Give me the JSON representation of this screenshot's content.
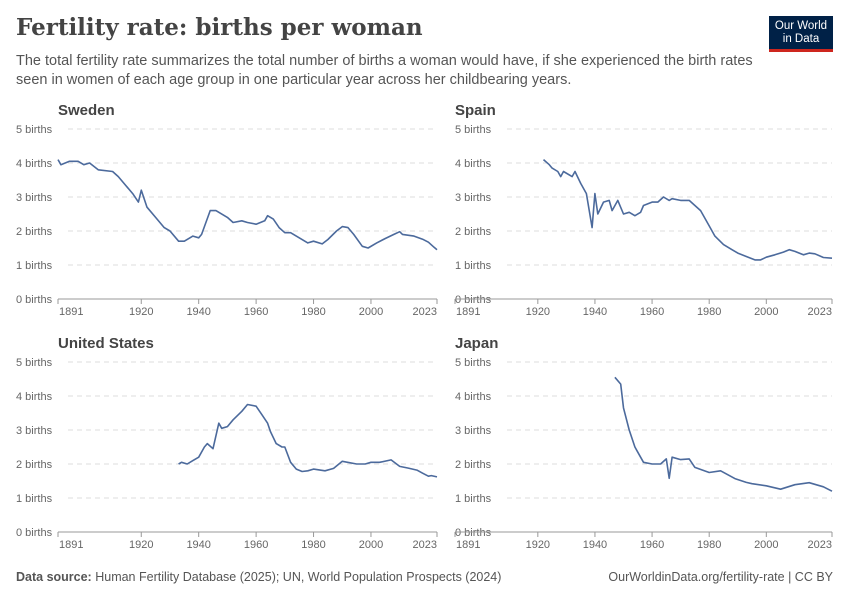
{
  "title": "Fertility rate: births per woman",
  "subtitle": "The total fertility rate summarizes the total number of births a woman would have, if she experienced the birth rates seen in women of each age group in one particular year across her childbearing years.",
  "logo": "Our World in Data",
  "footer": {
    "source_label": "Data source:",
    "source": "Human Fertility Database (2025); UN, World Population Prospects (2024)",
    "url": "OurWorldinData.org/fertility-rate | CC BY"
  },
  "colors": {
    "line": "#4c6a9c",
    "grid": "#dddddd"
  },
  "chart_data": [
    {
      "type": "line",
      "title": "Sweden",
      "xlim": [
        1891,
        2023
      ],
      "ylim": [
        0,
        5
      ],
      "xticks": [
        "1891",
        "1920",
        "1940",
        "1960",
        "1980",
        "2000",
        "2023"
      ],
      "yticks": [
        "0 births",
        "1 births",
        "2 births",
        "3 births",
        "4 births",
        "5 births"
      ],
      "x": [
        1891,
        1892,
        1895,
        1898,
        1900,
        1902,
        1905,
        1910,
        1912,
        1914,
        1917,
        1919,
        1920,
        1922,
        1925,
        1928,
        1930,
        1933,
        1935,
        1938,
        1940,
        1941,
        1944,
        1946,
        1950,
        1952,
        1955,
        1957,
        1960,
        1963,
        1964,
        1966,
        1968,
        1970,
        1972,
        1975,
        1978,
        1980,
        1983,
        1985,
        1988,
        1990,
        1992,
        1994,
        1997,
        1999,
        2002,
        2005,
        2008,
        2010,
        2011,
        2015,
        2018,
        2020,
        2022,
        2023
      ],
      "y": [
        4.1,
        3.95,
        4.05,
        4.05,
        3.95,
        4.0,
        3.8,
        3.75,
        3.6,
        3.4,
        3.1,
        2.85,
        3.2,
        2.7,
        2.4,
        2.1,
        2.0,
        1.7,
        1.7,
        1.85,
        1.8,
        1.9,
        2.6,
        2.6,
        2.4,
        2.25,
        2.3,
        2.25,
        2.2,
        2.3,
        2.45,
        2.35,
        2.1,
        1.95,
        1.95,
        1.8,
        1.65,
        1.7,
        1.62,
        1.75,
        2.0,
        2.13,
        2.1,
        1.9,
        1.55,
        1.5,
        1.65,
        1.78,
        1.9,
        1.98,
        1.9,
        1.85,
        1.76,
        1.67,
        1.52,
        1.45
      ]
    },
    {
      "type": "line",
      "title": "Spain",
      "xlim": [
        1891,
        2023
      ],
      "ylim": [
        0,
        5
      ],
      "xticks": [
        "1891",
        "1920",
        "1940",
        "1960",
        "1980",
        "2000",
        "2023"
      ],
      "yticks": [
        "0 births",
        "1 births",
        "2 births",
        "3 births",
        "4 births",
        "5 births"
      ],
      "x": [
        1922,
        1924,
        1925,
        1927,
        1928,
        1929,
        1932,
        1933,
        1935,
        1937,
        1939,
        1940,
        1941,
        1943,
        1945,
        1946,
        1948,
        1950,
        1952,
        1954,
        1956,
        1957,
        1960,
        1962,
        1964,
        1966,
        1967,
        1970,
        1973,
        1975,
        1977,
        1980,
        1982,
        1985,
        1988,
        1990,
        1993,
        1996,
        1998,
        2000,
        2003,
        2006,
        2008,
        2010,
        2013,
        2015,
        2017,
        2020,
        2023
      ],
      "y": [
        4.1,
        3.95,
        3.85,
        3.75,
        3.6,
        3.75,
        3.6,
        3.75,
        3.4,
        3.1,
        2.1,
        3.1,
        2.5,
        2.85,
        2.9,
        2.6,
        2.9,
        2.5,
        2.55,
        2.45,
        2.55,
        2.75,
        2.85,
        2.85,
        3.0,
        2.9,
        2.95,
        2.9,
        2.9,
        2.75,
        2.6,
        2.15,
        1.85,
        1.6,
        1.45,
        1.35,
        1.25,
        1.15,
        1.15,
        1.23,
        1.3,
        1.38,
        1.45,
        1.4,
        1.3,
        1.35,
        1.33,
        1.22,
        1.2
      ]
    },
    {
      "type": "line",
      "title": "United States",
      "xlim": [
        1891,
        2023
      ],
      "ylim": [
        0,
        5
      ],
      "xticks": [
        "1891",
        "1920",
        "1940",
        "1960",
        "1980",
        "2000",
        "2023"
      ],
      "yticks": [
        "0 births",
        "1 births",
        "2 births",
        "3 births",
        "4 births",
        "5 births"
      ],
      "x": [
        1933,
        1934,
        1936,
        1938,
        1940,
        1942,
        1943,
        1945,
        1947,
        1948,
        1950,
        1952,
        1955,
        1957,
        1960,
        1962,
        1964,
        1965,
        1967,
        1969,
        1970,
        1972,
        1974,
        1976,
        1978,
        1980,
        1984,
        1987,
        1990,
        1995,
        1998,
        2000,
        2003,
        2007,
        2010,
        2013,
        2016,
        2018,
        2020,
        2021,
        2023
      ],
      "y": [
        2.0,
        2.05,
        2.0,
        2.1,
        2.2,
        2.5,
        2.6,
        2.45,
        3.2,
        3.05,
        3.1,
        3.3,
        3.55,
        3.75,
        3.7,
        3.45,
        3.2,
        2.95,
        2.6,
        2.5,
        2.5,
        2.05,
        1.85,
        1.78,
        1.8,
        1.85,
        1.8,
        1.87,
        2.08,
        2.0,
        2.0,
        2.05,
        2.05,
        2.12,
        1.93,
        1.88,
        1.82,
        1.73,
        1.64,
        1.66,
        1.62
      ]
    },
    {
      "type": "line",
      "title": "Japan",
      "xlim": [
        1891,
        2023
      ],
      "ylim": [
        0,
        5
      ],
      "xticks": [
        "1891",
        "1920",
        "1940",
        "1960",
        "1980",
        "2000",
        "2023"
      ],
      "yticks": [
        "0 births",
        "1 births",
        "2 births",
        "3 births",
        "4 births",
        "5 births"
      ],
      "x": [
        1947,
        1949,
        1950,
        1952,
        1954,
        1956,
        1957,
        1960,
        1963,
        1965,
        1966,
        1967,
        1970,
        1973,
        1975,
        1980,
        1984,
        1989,
        1993,
        1995,
        2000,
        2005,
        2010,
        2015,
        2020,
        2023
      ],
      "y": [
        4.55,
        4.35,
        3.65,
        3.0,
        2.5,
        2.2,
        2.05,
        2.0,
        2.0,
        2.15,
        1.58,
        2.2,
        2.13,
        2.15,
        1.9,
        1.75,
        1.8,
        1.57,
        1.46,
        1.42,
        1.36,
        1.26,
        1.39,
        1.45,
        1.33,
        1.2
      ]
    }
  ]
}
